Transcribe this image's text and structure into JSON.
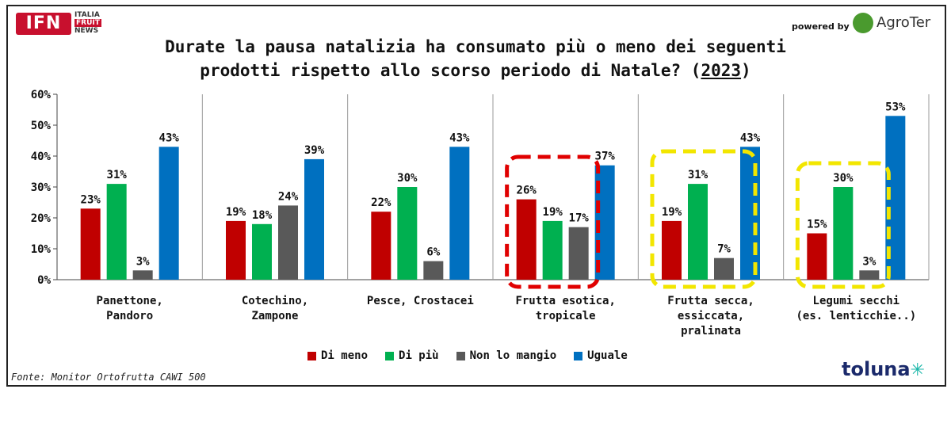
{
  "header": {
    "ifn_logo": "IFN",
    "ifn_side_lines": [
      "ITALIA",
      "FRUIT",
      "NEWS"
    ],
    "powered_by": "powered by",
    "agroter_logo": "AgroTer"
  },
  "footer": {
    "source": "Fonte: Monitor Ortofrutta CAWI 500",
    "toluna_logo": "toluna"
  },
  "colors": {
    "di_meno": "#c00000",
    "di_piu": "#00b050",
    "non_lo_mangio": "#595959",
    "uguale": "#0070c0",
    "red_highlight": "#e00000",
    "yellow_highlight": "#f2e600"
  },
  "chart_data": {
    "type": "bar",
    "title_line1": "Durate la pausa natalizia ha consumato più o meno dei seguenti",
    "title_line2": "prodotti rispetto allo scorso periodo di Natale? (",
    "title_year": "2023",
    "title_end": ")",
    "categories": [
      [
        "Panettone,",
        "Pandoro"
      ],
      [
        "Cotechino,",
        "Zampone"
      ],
      [
        "Pesce, Crostacei"
      ],
      [
        "Frutta esotica,",
        "tropicale"
      ],
      [
        "Frutta secca,",
        "essiccata,",
        "pralinata"
      ],
      [
        "Legumi secchi",
        "(es. lenticchie..)"
      ]
    ],
    "series": [
      {
        "name": "Di meno",
        "values": [
          23,
          19,
          22,
          26,
          19,
          15
        ]
      },
      {
        "name": "Di più",
        "values": [
          31,
          18,
          30,
          19,
          31,
          30
        ]
      },
      {
        "name": "Non lo mangio",
        "values": [
          3,
          24,
          6,
          17,
          7,
          3
        ]
      },
      {
        "name": "Uguale",
        "values": [
          43,
          39,
          43,
          37,
          43,
          53
        ]
      }
    ],
    "ylim": [
      0,
      60
    ],
    "yticks": [
      "0%",
      "10%",
      "20%",
      "30%",
      "40%",
      "50%",
      "60%"
    ],
    "value_suffix": "%",
    "highlights": [
      {
        "category": 3,
        "style": "red-dashed"
      },
      {
        "category": 4,
        "style": "yellow-dashed"
      },
      {
        "category": 5,
        "style": "yellow-dashed"
      }
    ],
    "legend_position": "bottom"
  }
}
